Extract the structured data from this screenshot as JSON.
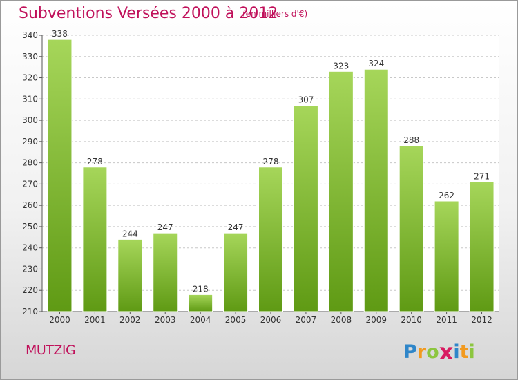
{
  "header": {
    "title": "Subventions Versées 2000 à 2012",
    "unit_note": "(en milliers d'€)"
  },
  "footer": {
    "commune": "MUTZIG",
    "brand_letters": [
      "P",
      "r",
      "o",
      "x",
      "i",
      "t",
      "i"
    ],
    "brand_colors": [
      "#2f86c9",
      "#f29a1f",
      "#8cc63f",
      "#d81b60",
      "#2f86c9",
      "#f29a1f",
      "#8cc63f"
    ]
  },
  "colors": {
    "title": "#c0105a",
    "bar_light": "#a6d65a",
    "bar_dark": "#5f9a14",
    "grid": "#c8c8c8"
  },
  "chart_data": {
    "type": "bar",
    "title": "Subventions Versées 2000 à 2012",
    "subtitle": "(en milliers d'€)",
    "xlabel": "",
    "ylabel": "",
    "categories": [
      "2000",
      "2001",
      "2002",
      "2003",
      "2004",
      "2005",
      "2006",
      "2007",
      "2008",
      "2009",
      "2010",
      "2011",
      "2012"
    ],
    "values": [
      338,
      278,
      244,
      247,
      218,
      247,
      278,
      307,
      323,
      324,
      288,
      262,
      271
    ],
    "ylim": [
      210,
      340
    ],
    "yticks": [
      210,
      220,
      230,
      240,
      250,
      260,
      270,
      280,
      290,
      300,
      310,
      320,
      330,
      340
    ],
    "grid": true,
    "legend": "none"
  }
}
